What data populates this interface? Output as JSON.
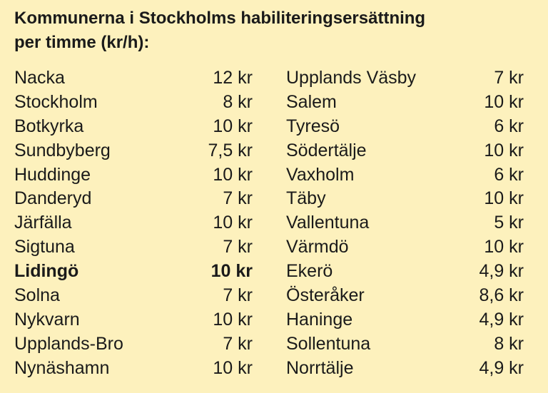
{
  "title": {
    "line1": "Kommunerna i Stockholms habiliteringsersättning",
    "line2": "per timme (kr/h):"
  },
  "left_column": [
    {
      "name": "Nacka",
      "value": "12 kr",
      "bold": false
    },
    {
      "name": "Stockholm",
      "value": "8 kr",
      "bold": false
    },
    {
      "name": "Botkyrka",
      "value": "10 kr",
      "bold": false
    },
    {
      "name": "Sundbyberg",
      "value": "7,5 kr",
      "bold": false
    },
    {
      "name": "Huddinge",
      "value": "10 kr",
      "bold": false
    },
    {
      "name": "Danderyd",
      "value": "7 kr",
      "bold": false
    },
    {
      "name": "Järfälla",
      "value": "10 kr",
      "bold": false
    },
    {
      "name": "Sigtuna",
      "value": "7 kr",
      "bold": false
    },
    {
      "name": "Lidingö",
      "value": "10 kr",
      "bold": true
    },
    {
      "name": "Solna",
      "value": "7 kr",
      "bold": false
    },
    {
      "name": "Nykvarn",
      "value": "10 kr",
      "bold": false
    },
    {
      "name": "Upplands-Bro",
      "value": "7 kr",
      "bold": false
    },
    {
      "name": "Nynäshamn",
      "value": "10 kr",
      "bold": false
    }
  ],
  "right_column": [
    {
      "name": "Upplands Väsby",
      "value": "7 kr",
      "bold": false
    },
    {
      "name": "Salem",
      "value": "10 kr",
      "bold": false
    },
    {
      "name": "Tyresö",
      "value": "6 kr",
      "bold": false
    },
    {
      "name": "Södertälje",
      "value": "10 kr",
      "bold": false
    },
    {
      "name": "Vaxholm",
      "value": "6 kr",
      "bold": false
    },
    {
      "name": "Täby",
      "value": "10 kr",
      "bold": false
    },
    {
      "name": "Vallentuna",
      "value": "5 kr",
      "bold": false
    },
    {
      "name": "Värmdö",
      "value": "10 kr",
      "bold": false
    },
    {
      "name": "Ekerö",
      "value": "4,9 kr",
      "bold": false
    },
    {
      "name": "Österåker",
      "value": "8,6 kr",
      "bold": false
    },
    {
      "name": "Haninge",
      "value": "4,9 kr",
      "bold": false
    },
    {
      "name": "Sollentuna",
      "value": "8 kr",
      "bold": false
    },
    {
      "name": "Norrtälje",
      "value": "4,9 kr",
      "bold": false
    }
  ],
  "colors": {
    "background": "#fdf1bd",
    "text": "#1a1a1a"
  }
}
